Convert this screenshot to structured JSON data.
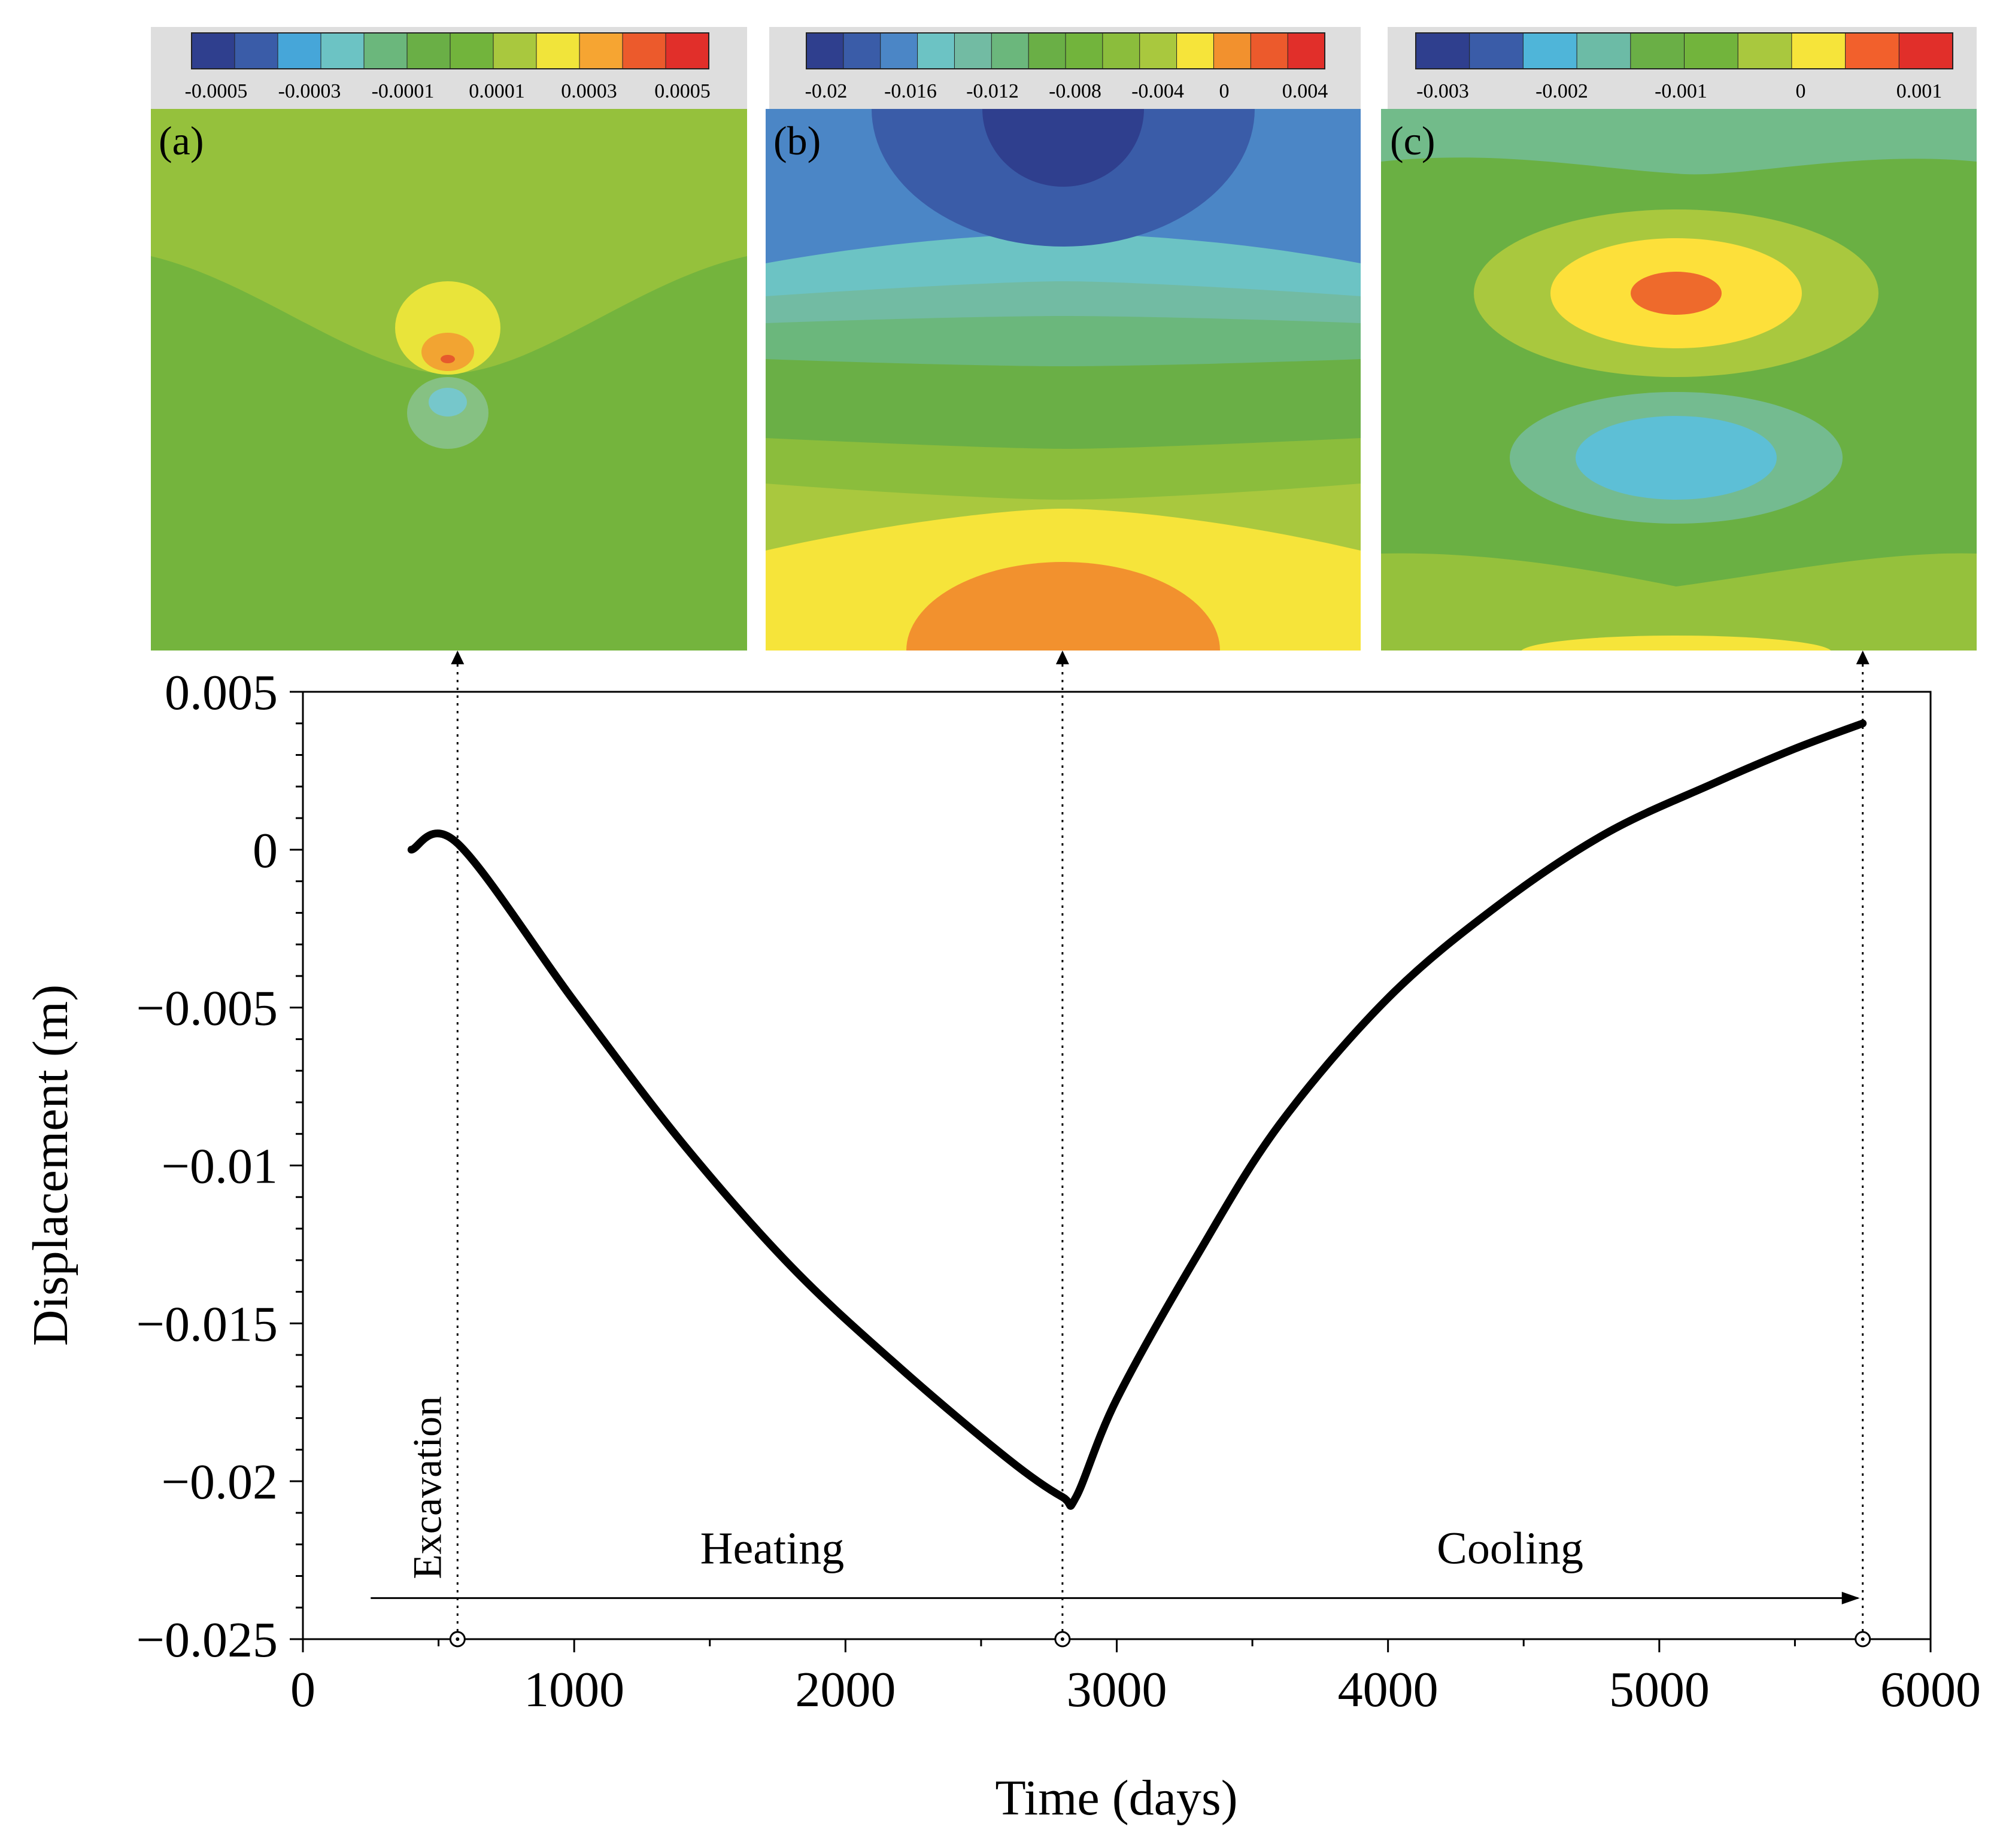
{
  "chart_data": [
    {
      "type": "heatmap",
      "panel_label": "(a)",
      "colorbar_colors": [
        "#2f3f8e",
        "#3a5ca8",
        "#46a6d9",
        "#6cc3c4",
        "#6bb77c",
        "#6aaf46",
        "#72b43c",
        "#a9c83e",
        "#f1e43a",
        "#f6a532",
        "#ec5a2c",
        "#e12f2a"
      ],
      "colorbar_ticks": [
        "-0.0005",
        "-0.0003",
        "-0.0001",
        "0.0001",
        "0.0003",
        "0.0005"
      ],
      "field": {
        "background": "#95c13c",
        "lower_region": "#74b43d",
        "features": [
          {
            "kind": "ellipse",
            "color": "#e9e43a"
          },
          {
            "kind": "ellipse",
            "color": "#f2a432"
          },
          {
            "kind": "ellipse",
            "color": "#e65a2c"
          },
          {
            "kind": "ellipse",
            "color": "#86c183"
          },
          {
            "kind": "ellipse",
            "color": "#76c7cb"
          }
        ]
      }
    },
    {
      "type": "heatmap",
      "panel_label": "(b)",
      "colorbar_colors": [
        "#2f3f8e",
        "#3a5ca8",
        "#4b86c6",
        "#6cc3c4",
        "#72bba3",
        "#6bb77c",
        "#6aaf46",
        "#72b43c",
        "#8bbd3c",
        "#a9c83e",
        "#f6e43a",
        "#f2912e",
        "#ec5a2c",
        "#e12f2a"
      ],
      "colorbar_ticks": [
        "-0.02",
        "-0.016",
        "-0.012",
        "-0.008",
        "-0.004",
        "0",
        "0.004"
      ],
      "field": {
        "bands": [
          "#4b86c6",
          "#6cc3c4",
          "#72bba3",
          "#6bb77c",
          "#6aaf46",
          "#8bbd3c",
          "#a9c83e",
          "#f6e43a"
        ],
        "top_features": [
          {
            "color": "#3a5ca8"
          },
          {
            "color": "#2f3f8e"
          }
        ],
        "bottom_feature": {
          "color": "#f2912e"
        }
      }
    },
    {
      "type": "heatmap",
      "panel_label": "(c)",
      "colorbar_colors": [
        "#2f3f8e",
        "#3a5ca8",
        "#4fb5d9",
        "#6cbba6",
        "#6aaf46",
        "#72b43c",
        "#a9c83e",
        "#f6e43a",
        "#f2602c",
        "#e12f2a"
      ],
      "colorbar_ticks": [
        "-0.003",
        "-0.002",
        "-0.001",
        "0",
        "0.001"
      ],
      "field": {
        "background": "#6ab043",
        "top_band": "#72bb8a",
        "bottom_band": "#95c13c",
        "features": [
          {
            "kind": "ellipse",
            "color": "#a9c83e"
          },
          {
            "kind": "ellipse",
            "color": "#fde03a"
          },
          {
            "kind": "ellipse",
            "color": "#ee6a2c"
          },
          {
            "kind": "ellipse",
            "color": "#74bb90"
          },
          {
            "kind": "ellipse",
            "color": "#5dbfd6"
          },
          {
            "kind": "ellipse",
            "color": "#f6e43a"
          }
        ]
      }
    },
    {
      "type": "line",
      "xlabel": "Time (days)",
      "ylabel": "Displacement (m)",
      "xlim": [
        0,
        6000
      ],
      "ylim": [
        -0.025,
        0.005
      ],
      "x_ticks": [
        "0",
        "1000",
        "2000",
        "3000",
        "4000",
        "5000",
        "6000"
      ],
      "y_ticks": [
        "0.005",
        "0",
        "−0.005",
        "−0.01",
        "−0.015",
        "−0.02",
        "−0.025"
      ],
      "series": [
        {
          "color": "#000000",
          "x": [
            400,
            570,
            1000,
            1400,
            1800,
            2200,
            2600,
            2800,
            2850,
            3000,
            3300,
            3600,
            4000,
            4400,
            4800,
            5200,
            5500,
            5750
          ],
          "y": [
            0.0,
            0.0002,
            -0.0048,
            -0.0093,
            -0.0132,
            -0.0164,
            -0.0193,
            -0.0205,
            -0.0205,
            -0.0174,
            -0.0128,
            -0.0087,
            -0.0047,
            -0.0018,
            0.0005,
            0.0021,
            0.0032,
            0.004
          ]
        }
      ],
      "markers": [
        {
          "x": 570,
          "target": "(a)"
        },
        {
          "x": 2800,
          "target": "(b)"
        },
        {
          "x": 5750,
          "target": "(c)"
        }
      ],
      "annotations": {
        "excavation": "Excavation",
        "heating": "Heating",
        "cooling": "Cooling"
      },
      "stage_arrow": {
        "x_start": 250,
        "x_end": 5750,
        "y": -0.0237
      }
    }
  ]
}
